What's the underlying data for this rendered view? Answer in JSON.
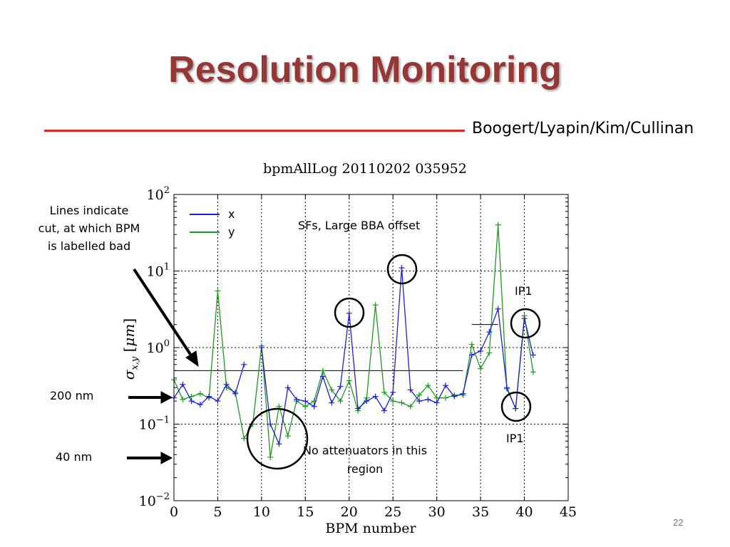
{
  "slide": {
    "title": "Resolution Monitoring",
    "authors": "Boogert/Lyapin/Kim/Cullinan",
    "page_number": "22"
  },
  "annotations": {
    "cut_lines": "Lines indicate cut, at which BPM is labelled bad",
    "nm200": "200 nm",
    "nm40": "40 nm",
    "sfs": "SFs, Large BBA offset",
    "no_attenuators": "No attenuators in this region",
    "ip1_top": "IP1",
    "ip1_bottom": "IP1"
  },
  "colors": {
    "title": "#953735",
    "rule": "#e0271e",
    "x_series": "#1f1fd6",
    "y_series": "#1f9a1f"
  },
  "chart_data": {
    "type": "line",
    "title": "bpmAllLog 20110202 035952",
    "xlabel": "BPM number",
    "ylabel": "σx,y [μm]",
    "xlim": [
      0,
      45
    ],
    "ylim": [
      0.01,
      100
    ],
    "yscale": "log",
    "xticks": [
      0,
      5,
      10,
      15,
      20,
      25,
      30,
      35,
      40,
      45
    ],
    "yticks": [
      {
        "value": 0.01,
        "base": "10",
        "exp": "−2"
      },
      {
        "value": 0.1,
        "base": "10",
        "exp": "−1"
      },
      {
        "value": 1,
        "base": "10",
        "exp": "0"
      },
      {
        "value": 10,
        "base": "10",
        "exp": "1"
      },
      {
        "value": 100,
        "base": "10",
        "exp": "2"
      }
    ],
    "grid": true,
    "legend": "top-left",
    "series": [
      {
        "name": "x",
        "segments": [
          {
            "x": [
              0,
              1,
              2,
              3,
              4,
              5,
              6,
              7,
              8
            ],
            "y": [
              0.22,
              0.33,
              0.2,
              0.18,
              0.23,
              0.2,
              0.33,
              0.25,
              0.6
            ]
          },
          {
            "x": [
              10,
              11,
              12,
              13,
              14,
              15,
              16,
              17,
              18,
              19,
              20,
              21,
              22,
              23,
              24,
              25,
              26,
              27,
              28,
              29,
              30,
              31,
              32,
              33,
              34,
              35,
              36,
              37,
              38,
              39,
              40,
              41
            ],
            "y": [
              1.0,
              0.1,
              0.055,
              0.3,
              0.21,
              0.2,
              0.17,
              0.42,
              0.19,
              0.31,
              2.8,
              0.16,
              0.2,
              0.23,
              0.15,
              0.26,
              11,
              0.28,
              0.2,
              0.21,
              0.19,
              0.32,
              0.23,
              0.25,
              0.8,
              0.9,
              1.6,
              3.2,
              0.3,
              0.16,
              2.4,
              0.8
            ]
          }
        ]
      },
      {
        "name": "y",
        "segments": [
          {
            "x": [
              0,
              1,
              2,
              3,
              4,
              5,
              6,
              7,
              8,
              9,
              10,
              11,
              12,
              13,
              14,
              15,
              16,
              17,
              18,
              19,
              20,
              21,
              22,
              23,
              24,
              25,
              26,
              27,
              28,
              29,
              30,
              31,
              32,
              33,
              34,
              35,
              36,
              37,
              38,
              39,
              40,
              41
            ],
            "y": [
              0.38,
              0.21,
              0.23,
              0.25,
              0.22,
              5.5,
              0.3,
              0.26,
              0.065,
              0.1,
              1.05,
              0.037,
              0.17,
              0.07,
              0.2,
              0.17,
              0.2,
              0.5,
              0.28,
              0.2,
              0.37,
              0.15,
              0.22,
              3.6,
              0.26,
              0.2,
              0.19,
              0.17,
              0.24,
              0.32,
              0.22,
              0.22,
              0.24,
              0.24,
              1.1,
              0.53,
              0.85,
              40,
              0.29,
              0.16,
              2.6,
              0.48
            ]
          }
        ]
      }
    ],
    "cut_lines": [
      {
        "x": [
          0,
          33
        ],
        "y": 0.5
      },
      {
        "x": [
          34,
          37
        ],
        "y": 2.0
      }
    ]
  }
}
